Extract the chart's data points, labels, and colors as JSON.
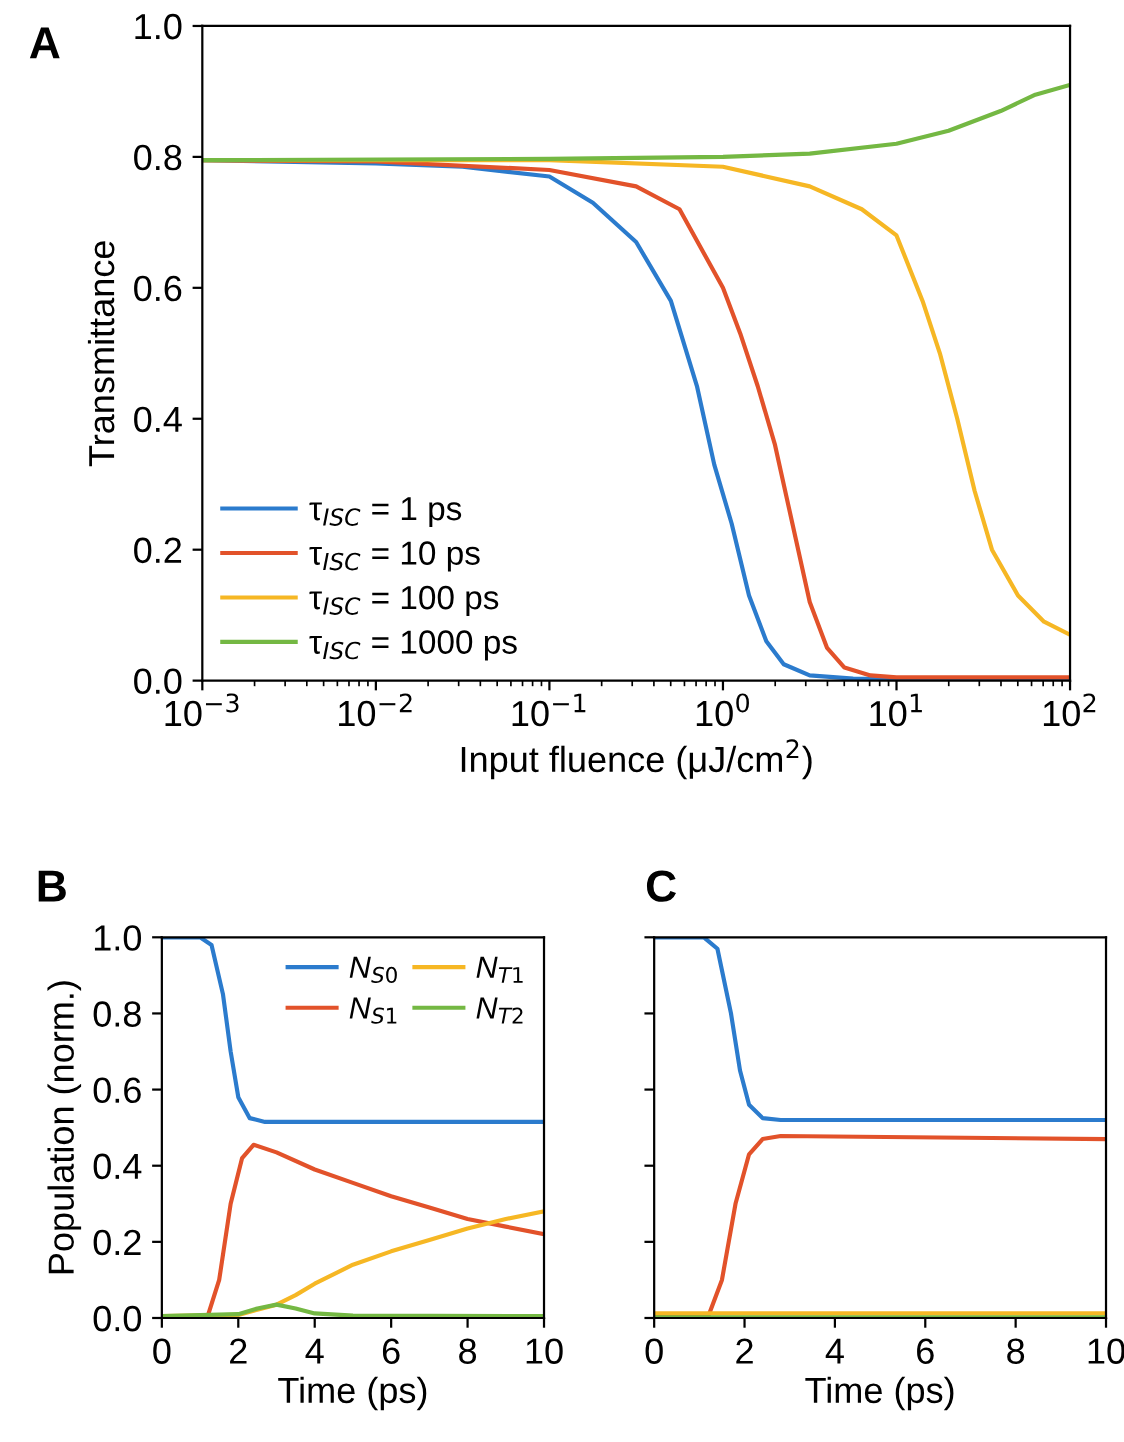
{
  "chart_data": [
    {
      "type": "line",
      "title": "A",
      "xlabel": "Input fluence (μJ/cm$^{2}$)",
      "ylabel": "Transmittance",
      "log": "x",
      "xlim": [
        0.001,
        100
      ],
      "ylim": [
        0,
        1.0
      ],
      "xticks": [
        {
          "value": 0.001,
          "label": "10$^{−3}$"
        },
        {
          "value": 0.01,
          "label": "10$^{−2}$"
        },
        {
          "value": 0.1,
          "label": "10$^{−1}$"
        },
        {
          "value": 1,
          "label": "10$^{0}$"
        },
        {
          "value": 10,
          "label": "10$^{1}$"
        },
        {
          "value": 100,
          "label": "10$^{2}$"
        }
      ],
      "yticks": [
        {
          "value": 0,
          "label": "0.0"
        },
        0.2,
        0.4,
        0.6,
        0.8,
        {
          "value": 1,
          "label": "1.0"
        }
      ],
      "legend": "bottom left",
      "grid": false,
      "series": [
        {
          "name": "τ$_{ISC}$ = 1 ps",
          "color": "#2b7bcd",
          "x": [
            0.001,
            0.01,
            0.0316,
            0.1,
            0.178,
            0.316,
            0.501,
            0.708,
            0.891,
            1.122,
            1.413,
            1.778,
            2.239,
            3.162,
            5.623,
            10,
            100
          ],
          "values": [
            0.795,
            0.79,
            0.785,
            0.77,
            0.73,
            0.67,
            0.58,
            0.45,
            0.33,
            0.24,
            0.13,
            0.06,
            0.025,
            0.008,
            0.003,
            0.002,
            0.002
          ]
        },
        {
          "name": "τ$_{ISC}$ = 10 ps",
          "color": "#e2522a",
          "x": [
            0.001,
            0.01,
            0.1,
            0.316,
            0.562,
            1,
            1.259,
            1.585,
            1.995,
            2.512,
            3.162,
            3.981,
            5.012,
            7.079,
            10,
            100
          ],
          "values": [
            0.795,
            0.793,
            0.78,
            0.755,
            0.72,
            0.6,
            0.53,
            0.45,
            0.36,
            0.24,
            0.12,
            0.05,
            0.02,
            0.008,
            0.005,
            0.005
          ]
        },
        {
          "name": "τ$_{ISC}$ = 100 ps",
          "color": "#f6b724",
          "x": [
            0.001,
            0.1,
            1,
            3.162,
            6.31,
            10,
            14.13,
            17.78,
            22.39,
            28.18,
            35.48,
            50.12,
            70.79,
            100
          ],
          "values": [
            0.795,
            0.795,
            0.785,
            0.755,
            0.72,
            0.68,
            0.58,
            0.5,
            0.4,
            0.29,
            0.2,
            0.13,
            0.09,
            0.07
          ]
        },
        {
          "name": "τ$_{ISC}$ = 1000 ps",
          "color": "#74b843",
          "x": [
            0.001,
            0.1,
            1,
            3.162,
            10,
            19.95,
            39.81,
            63.1,
            100
          ],
          "values": [
            0.795,
            0.797,
            0.8,
            0.805,
            0.82,
            0.84,
            0.87,
            0.895,
            0.91
          ]
        }
      ]
    },
    {
      "type": "line",
      "title": "B",
      "xlabel": "Time (ps)",
      "ylabel": "Population (norm.)",
      "xlim": [
        0,
        10
      ],
      "ylim": [
        0,
        1.0
      ],
      "xticks": [
        0,
        2,
        4,
        6,
        8,
        10
      ],
      "yticks": [
        {
          "value": 0,
          "label": "0.0"
        },
        0.2,
        0.4,
        0.6,
        0.8,
        {
          "value": 1,
          "label": "1.0"
        }
      ],
      "legend": "top right",
      "grid": false,
      "series": [
        {
          "name": "N$_{S0}$",
          "color": "#2b7bcd",
          "x": [
            0,
            1,
            1.3,
            1.6,
            1.8,
            2,
            2.3,
            2.7,
            10
          ],
          "values": [
            1,
            1,
            0.98,
            0.85,
            0.7,
            0.58,
            0.525,
            0.515,
            0.515
          ]
        },
        {
          "name": "N$_{S1}$",
          "color": "#e2522a",
          "x": [
            0,
            1.2,
            1.5,
            1.8,
            2.1,
            2.4,
            3,
            4,
            5,
            6,
            7,
            8,
            9,
            10
          ],
          "values": [
            0.005,
            0.005,
            0.1,
            0.3,
            0.42,
            0.455,
            0.435,
            0.39,
            0.355,
            0.32,
            0.29,
            0.26,
            0.24,
            0.22
          ]
        },
        {
          "name": "N$_{T1}$",
          "color": "#f6b724",
          "x": [
            0,
            2,
            3,
            3.5,
            4,
            5,
            6,
            7,
            8,
            9,
            10
          ],
          "values": [
            0.005,
            0.008,
            0.035,
            0.06,
            0.09,
            0.14,
            0.175,
            0.205,
            0.235,
            0.26,
            0.28
          ]
        },
        {
          "name": "N$_{T2}$",
          "color": "#74b843",
          "x": [
            0,
            2,
            2.5,
            3,
            3.5,
            4,
            5,
            10
          ],
          "values": [
            0.005,
            0.01,
            0.025,
            0.035,
            0.025,
            0.012,
            0.006,
            0.005
          ]
        }
      ]
    },
    {
      "type": "line",
      "title": "C",
      "xlabel": "Time (ps)",
      "xlim": [
        0,
        10
      ],
      "ylim": [
        0,
        1.0
      ],
      "xticks": [
        0,
        2,
        4,
        6,
        8,
        10
      ],
      "yticks": [
        {
          "value": 0,
          "label": null
        },
        {
          "value": 0.2,
          "label": null
        },
        {
          "value": 0.4,
          "label": null
        },
        {
          "value": 0.6,
          "label": null
        },
        {
          "value": 0.8,
          "label": null
        },
        {
          "value": 1,
          "label": null
        }
      ],
      "tick_labels": "x",
      "grid": false,
      "series": [
        {
          "color": "#2b7bcd",
          "x": [
            0,
            1.1,
            1.4,
            1.7,
            1.9,
            2.1,
            2.4,
            2.8,
            10
          ],
          "values": [
            1,
            1,
            0.97,
            0.8,
            0.65,
            0.56,
            0.525,
            0.52,
            0.52
          ]
        },
        {
          "color": "#e2522a",
          "x": [
            0,
            1.2,
            1.5,
            1.8,
            2.1,
            2.4,
            2.8,
            10
          ],
          "values": [
            0.005,
            0.005,
            0.1,
            0.3,
            0.43,
            0.47,
            0.478,
            0.47
          ]
        },
        {
          "color": "#f6b724",
          "x": [
            0,
            10
          ],
          "values": [
            0.012,
            0.012
          ]
        },
        {
          "color": "#74b843",
          "x": [
            0,
            10
          ],
          "values": [
            0.002,
            0.002
          ]
        }
      ]
    }
  ]
}
